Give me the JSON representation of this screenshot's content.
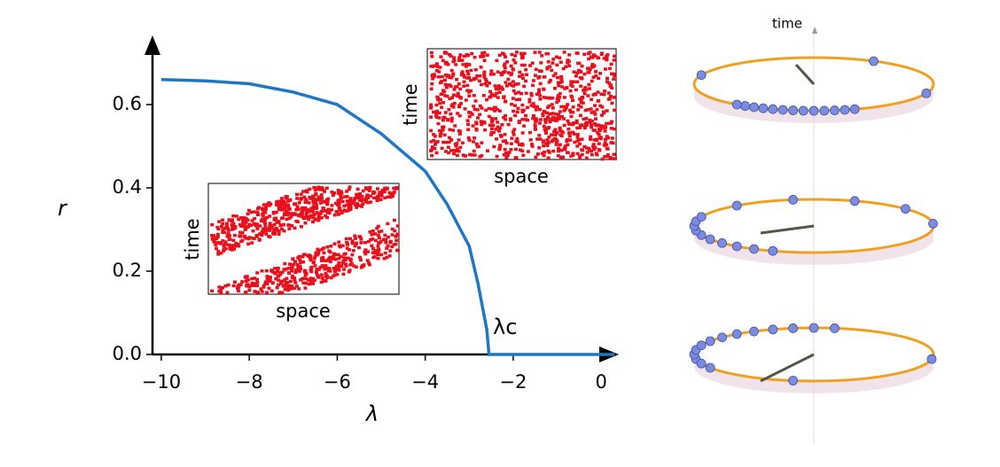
{
  "chart_data": {
    "type": "line",
    "xlabel": "λ",
    "ylabel": "r",
    "annotation": "λc",
    "x": [
      -10,
      -9,
      -8,
      -7,
      -6,
      -5,
      -4,
      -3.5,
      -3,
      -2.8,
      -2.6,
      -2.55,
      -2,
      -1,
      0,
      0.3
    ],
    "values": [
      0.66,
      0.657,
      0.65,
      0.63,
      0.6,
      0.53,
      0.44,
      0.36,
      0.26,
      0.17,
      0.06,
      0,
      0,
      0,
      0,
      0
    ],
    "color": "#1f77c4",
    "xlim": [
      -10.2,
      0.4
    ],
    "ylim": [
      0,
      0.766
    ],
    "xticks": [
      {
        "value": -10,
        "label": "−10"
      },
      {
        "value": -8,
        "label": "−8"
      },
      {
        "value": -6,
        "label": "−6"
      },
      {
        "value": -4,
        "label": "−4"
      },
      {
        "value": -2,
        "label": "−2"
      },
      0
    ],
    "yticks": [
      {
        "value": 0,
        "label": "0.0"
      },
      0.2,
      0.4,
      0.6
    ],
    "insets": [
      {
        "xlabel": "space",
        "ylabel": "time"
      },
      {
        "xlabel": "space",
        "ylabel": "time"
      }
    ]
  },
  "right_panel": {
    "axis_label": "time"
  }
}
